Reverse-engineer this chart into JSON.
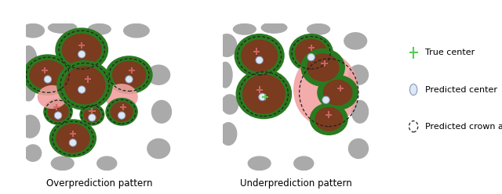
{
  "bg_color": "#ffffff",
  "gray_color": "#aaaaaa",
  "green_color": "#2a7a20",
  "brown_color": "#7a3b1e",
  "pink_color": "#f2a0a0",
  "white_dot_color": "#dde8f5",
  "true_center_color": "#cc6666",
  "green_cross_color": "#55cc55",
  "label1": "True center",
  "label2": "Predicted center",
  "label3": "Predicted crown area",
  "title_left": "Overprediction pattern",
  "title_right": "Underprediction pattern",
  "title_fontsize": 8.5,
  "legend_fontsize": 8.0
}
